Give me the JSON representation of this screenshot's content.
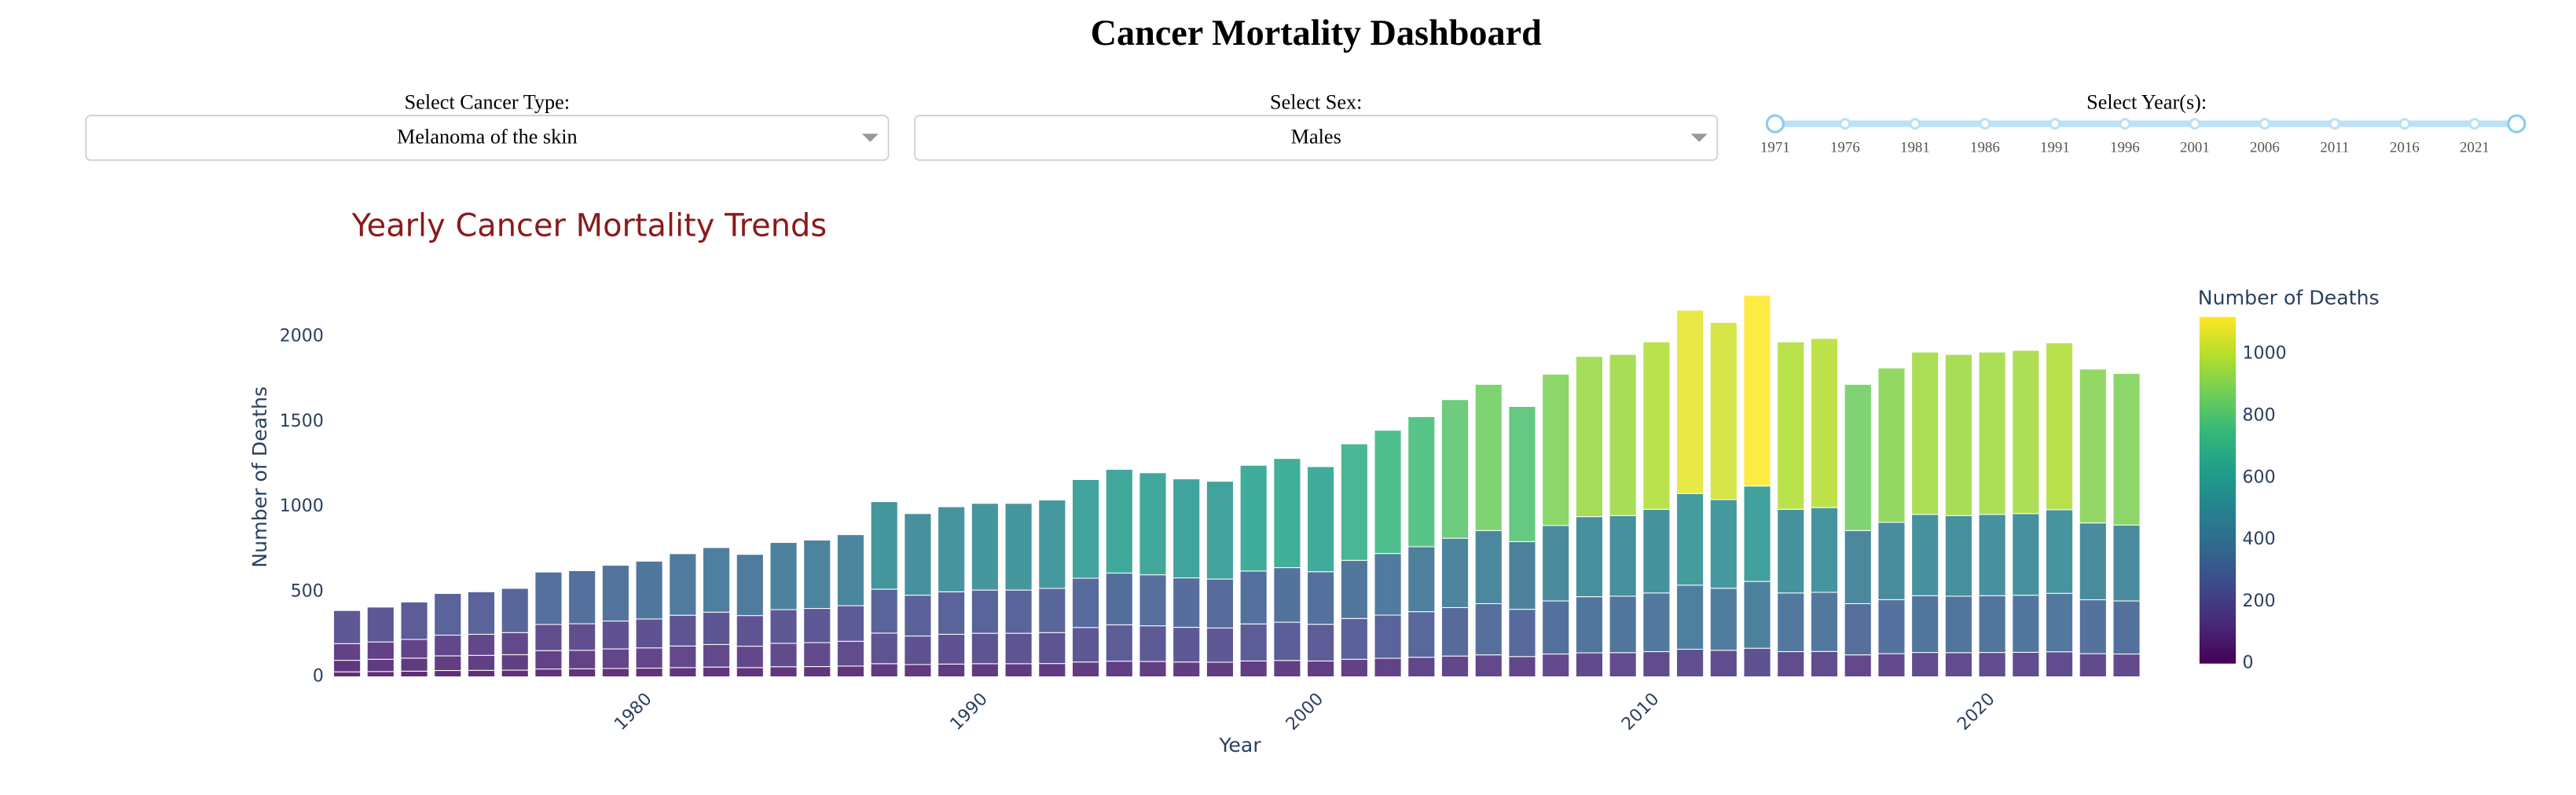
{
  "header": {
    "title": "Cancer Mortality Dashboard"
  },
  "controls": [
    {
      "label": "Select Cancer Type:",
      "value": "Melanoma of the skin"
    },
    {
      "label": "Select Sex:",
      "value": "Males"
    },
    {
      "label": "Select Year(s):",
      "marks": [
        1971,
        1976,
        1981,
        1986,
        1991,
        1996,
        2001,
        2006,
        2011,
        2016,
        2021
      ],
      "value": [
        1971,
        2024
      ]
    }
  ],
  "chart_data": {
    "type": "bar",
    "stacked": true,
    "title": "Yearly Cancer Mortality Trends",
    "x_label": "Year",
    "y_label": "Number of Deaths",
    "x": [
      1971,
      1972,
      1973,
      1974,
      1975,
      1976,
      1977,
      1978,
      1979,
      1980,
      1981,
      1982,
      1983,
      1984,
      1985,
      1986,
      1987,
      1988,
      1989,
      1990,
      1991,
      1992,
      1993,
      1994,
      1995,
      1996,
      1997,
      1998,
      1999,
      2000,
      2001,
      2002,
      2003,
      2004,
      2005,
      2006,
      2007,
      2008,
      2009,
      2010,
      2011,
      2012,
      2013,
      2014,
      2015,
      2016,
      2017,
      2018,
      2019,
      2020,
      2021,
      2022,
      2023,
      2024
    ],
    "series": [
      {
        "values": [
          29,
          31,
          33,
          37,
          38,
          39,
          46,
          47,
          49,
          51,
          54,
          57,
          54,
          59,
          60,
          63,
          77,
          72,
          75,
          77,
          77,
          78,
          87,
          92,
          90,
          87,
          86,
          93,
          96,
          93,
          103,
          109,
          115,
          122,
          129,
          119,
          134,
          141,
          142,
          148,
          162,
          156,
          168,
          148,
          149,
          129,
          136,
          143,
          142,
          143,
          144,
          147,
          136,
          134
        ]
      },
      {
        "values": [
          68,
          72,
          77,
          86,
          88,
          91,
          108,
          109,
          115,
          119,
          127,
          133,
          126,
          138,
          141,
          146,
          180,
          168,
          175,
          179,
          179,
          182,
          203,
          214,
          210,
          204,
          201,
          218,
          225,
          216,
          240,
          254,
          268,
          285,
          301,
          278,
          312,
          330,
          332,
          345,
          377,
          365,
          393,
          345,
          348,
          301,
          318,
          334,
          332,
          334,
          336,
          344,
          317,
          312
        ]
      },
      {
        "values": [
          98,
          102,
          110,
          122,
          124,
          130,
          154,
          156,
          164,
          170,
          181,
          190,
          180,
          198,
          201,
          209,
          258,
          240,
          250,
          254,
          254,
          260,
          290,
          304,
          300,
          291,
          288,
          311,
          321,
          309,
          342,
          362,
          382,
          408,
          430,
          398,
          444,
          471,
          474,
          492,
          539,
          521,
          561,
          492,
          498,
          430,
          454,
          478,
          474,
          478,
          480,
          491,
          452,
          446
        ]
      },
      {
        "values": [
          195,
          205,
          220,
          245,
          250,
          260,
          308,
          312,
          328,
          340,
          362,
          380,
          360,
          395,
          402,
          418,
          515,
          480,
          500,
          510,
          510,
          520,
          580,
          610,
          600,
          582,
          575,
          622,
          642,
          618,
          685,
          725,
          765,
          815,
          860,
          795,
          890,
          942,
          948,
          985,
          1078,
          1042,
          1122,
          985,
          995,
          860,
          908,
          955,
          948,
          955,
          960,
          982,
          905,
          892
        ]
      }
    ],
    "xlim": [
      1970.5,
      2024.6
    ],
    "xticks": [
      1980,
      1990,
      2000,
      2010,
      2020
    ],
    "ylim": [
      0,
      2330
    ],
    "yticks": [
      0,
      500,
      1000,
      1500,
      2000
    ],
    "colorbar": {
      "title": "Number of Deaths",
      "clim": [
        0,
        1120
      ],
      "ticks": [
        0,
        200,
        400,
        600,
        800,
        1000
      ],
      "colorscale": [
        [
          0,
          "#440154"
        ],
        [
          0.111,
          "#482878"
        ],
        [
          0.222,
          "#3e4989"
        ],
        [
          0.333,
          "#31688e"
        ],
        [
          0.444,
          "#26828e"
        ],
        [
          0.556,
          "#1f9e89"
        ],
        [
          0.667,
          "#35b779"
        ],
        [
          0.778,
          "#6ece58"
        ],
        [
          0.889,
          "#b5de2b"
        ],
        [
          1,
          "#fde725"
        ]
      ]
    }
  }
}
